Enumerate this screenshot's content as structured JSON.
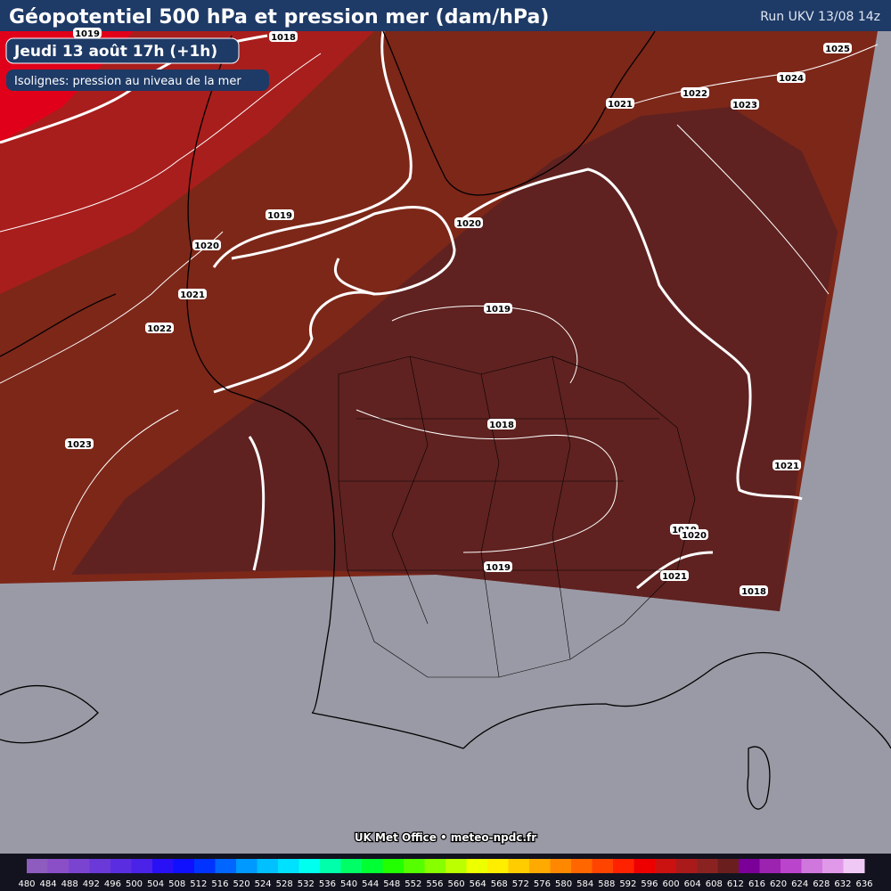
{
  "header": {
    "title": "Géopotentiel 500 hPa et pression mer (dam/hPa)",
    "run": "Run UKV 13/08 14z"
  },
  "date_label": "Jeudi 13 août 17h (+1h)",
  "subtitle": "Isolignes: pression au niveau de la mer",
  "isobar_labels": [
    "1019",
    "1018",
    "1025",
    "1024",
    "1022",
    "1021",
    "1023",
    "1019",
    "1020",
    "1020",
    "1021",
    "1019",
    "1022",
    "1018",
    "1023",
    "1021",
    "1019",
    "1020",
    "1019",
    "1021",
    "1018"
  ],
  "credit": "UK Met Office • meteo-npdc.fr",
  "colorbar": {
    "labels": [
      480,
      484,
      488,
      492,
      496,
      500,
      504,
      508,
      512,
      516,
      520,
      524,
      528,
      532,
      536,
      540,
      544,
      548,
      552,
      556,
      560,
      564,
      568,
      572,
      576,
      580,
      584,
      588,
      592,
      596,
      600,
      604,
      608,
      612,
      616,
      620,
      624,
      628,
      632,
      636
    ],
    "colors": [
      "#8e5bbf",
      "#8a4fc7",
      "#7b44d0",
      "#6a39d8",
      "#5a2ee0",
      "#4a22e8",
      "#2a10f5",
      "#1010ff",
      "#0033ff",
      "#0066ff",
      "#0099ff",
      "#00c0ff",
      "#00e0ff",
      "#00ffee",
      "#00ffaa",
      "#00ff66",
      "#00ff33",
      "#22ff00",
      "#55ff00",
      "#88ff00",
      "#bbff00",
      "#eeff00",
      "#ffee00",
      "#ffcc00",
      "#ffaa00",
      "#ff8800",
      "#ff6600",
      "#ff4400",
      "#ff2200",
      "#ee0000",
      "#cc1111",
      "#aa1a1a",
      "#8b2222",
      "#6b1e1e",
      "#7a0099",
      "#9c22b0",
      "#bb44cc",
      "#d077dd",
      "#e099e8",
      "#f0c8f5"
    ]
  }
}
